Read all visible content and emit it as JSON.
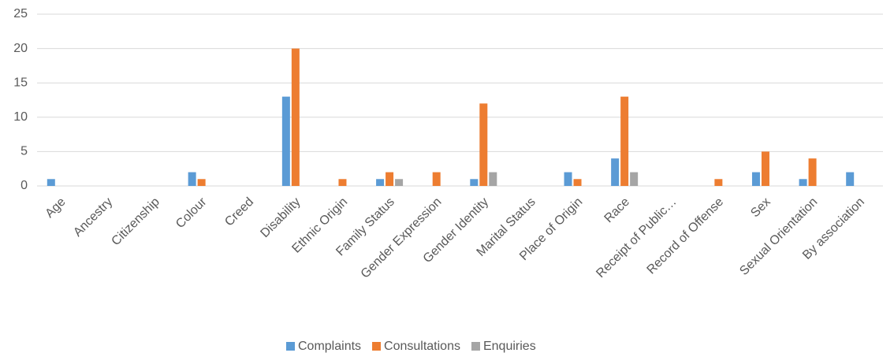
{
  "chart_data": {
    "type": "bar",
    "categories": [
      "Age",
      "Ancestry",
      "Citizenship",
      "Colour",
      "Creed",
      "Disability",
      "Ethnic Origin",
      "Family Status",
      "Gender Expression",
      "Gender Identity",
      "Marital Status",
      "Place of Origin",
      "Race",
      "Receipt of Public…",
      "Record of Offense",
      "Sex",
      "Sexual Orientation",
      "By association"
    ],
    "series": [
      {
        "name": "Complaints",
        "color": "#5b9bd5",
        "values": [
          1,
          0,
          0,
          2,
          0,
          13,
          0,
          1,
          0,
          1,
          0,
          2,
          4,
          0,
          0,
          2,
          1,
          2
        ]
      },
      {
        "name": "Consultations",
        "color": "#ed7d31",
        "values": [
          0,
          0,
          0,
          1,
          0,
          20,
          1,
          2,
          2,
          12,
          0,
          1,
          13,
          0,
          1,
          5,
          4,
          0
        ]
      },
      {
        "name": "Enquiries",
        "color": "#a5a5a5",
        "values": [
          0,
          0,
          0,
          0,
          0,
          0,
          0,
          1,
          0,
          2,
          0,
          0,
          2,
          0,
          0,
          0,
          0,
          0
        ]
      }
    ],
    "ylim": [
      0,
      25
    ],
    "yticks": [
      0,
      5,
      10,
      15,
      20,
      25
    ],
    "grid": true,
    "legend": "bottom"
  }
}
